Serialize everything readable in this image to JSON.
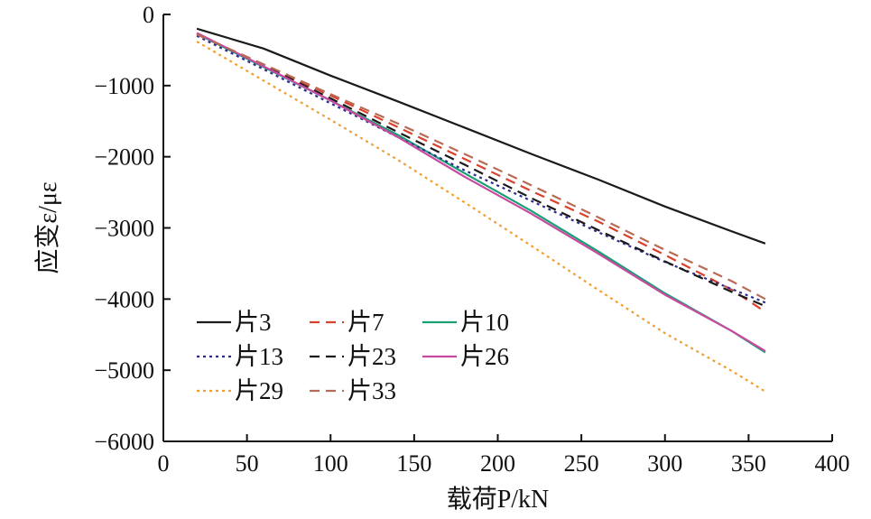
{
  "chart_data": {
    "type": "line",
    "xlabel": "载荷P/kN",
    "ylabel": "应变ε/με",
    "xlim": [
      0,
      400
    ],
    "ylim": [
      -6000,
      0
    ],
    "xticks": [
      0,
      50,
      100,
      150,
      200,
      250,
      300,
      350,
      400
    ],
    "yticks": [
      0,
      -1000,
      -2000,
      -3000,
      -4000,
      -5000,
      -6000
    ],
    "xtick_labels": [
      "0",
      "50",
      "100",
      "150",
      "200",
      "250",
      "300",
      "350",
      "400"
    ],
    "ytick_labels": [
      "0",
      "−1000",
      "−2000",
      "−3000",
      "−4000",
      "−5000",
      "−6000"
    ],
    "grid": false,
    "legend_position": "bottom-left",
    "series": [
      {
        "name": "片3",
        "color": "#1a1a1a",
        "dash": "solid",
        "x": [
          20,
          60,
          100,
          140,
          180,
          220,
          260,
          300,
          340,
          360
        ],
        "y": [
          -200,
          -480,
          -860,
          -1220,
          -1590,
          -1960,
          -2320,
          -2700,
          -3050,
          -3220
        ]
      },
      {
        "name": "片7",
        "color": "#d9412b",
        "dash": "dashed",
        "x": [
          20,
          60,
          100,
          140,
          180,
          220,
          260,
          300,
          340,
          360
        ],
        "y": [
          -280,
          -710,
          -1140,
          -1580,
          -2030,
          -2480,
          -2910,
          -3380,
          -3870,
          -4180
        ]
      },
      {
        "name": "片10",
        "color": "#1a9e74",
        "dash": "solid",
        "x": [
          20,
          60,
          100,
          140,
          180,
          220,
          260,
          300,
          340,
          360
        ],
        "y": [
          -270,
          -740,
          -1210,
          -1690,
          -2230,
          -2760,
          -3330,
          -3920,
          -4450,
          -4750
        ]
      },
      {
        "name": "片13",
        "color": "#2c2c8c",
        "dash": "dotted",
        "x": [
          20,
          60,
          100,
          140,
          180,
          220,
          260,
          300,
          340,
          360
        ],
        "y": [
          -300,
          -770,
          -1250,
          -1720,
          -2190,
          -2620,
          -3060,
          -3480,
          -3860,
          -4050
        ]
      },
      {
        "name": "片23",
        "color": "#1a1a1a",
        "dash": "dashed",
        "x": [
          20,
          60,
          100,
          140,
          180,
          220,
          260,
          300,
          340,
          360
        ],
        "y": [
          -270,
          -720,
          -1180,
          -1650,
          -2110,
          -2580,
          -3030,
          -3470,
          -3900,
          -4100
        ]
      },
      {
        "name": "片26",
        "color": "#c84aa0",
        "dash": "solid",
        "x": [
          20,
          60,
          100,
          140,
          180,
          220,
          260,
          300,
          340,
          360
        ],
        "y": [
          -260,
          -730,
          -1210,
          -1720,
          -2280,
          -2800,
          -3360,
          -3940,
          -4450,
          -4730
        ]
      },
      {
        "name": "片29",
        "color": "#f0a030",
        "dash": "dotted",
        "x": [
          20,
          60,
          100,
          140,
          180,
          220,
          260,
          300,
          340,
          360
        ],
        "y": [
          -380,
          -930,
          -1480,
          -2040,
          -2640,
          -3250,
          -3870,
          -4480,
          -5010,
          -5300
        ]
      },
      {
        "name": "片33",
        "color": "#b86a55",
        "dash": "dashed",
        "x": [
          20,
          60,
          100,
          140,
          180,
          220,
          260,
          300,
          340,
          360
        ],
        "y": [
          -280,
          -700,
          -1120,
          -1530,
          -1960,
          -2400,
          -2850,
          -3310,
          -3750,
          -4000
        ]
      }
    ]
  }
}
